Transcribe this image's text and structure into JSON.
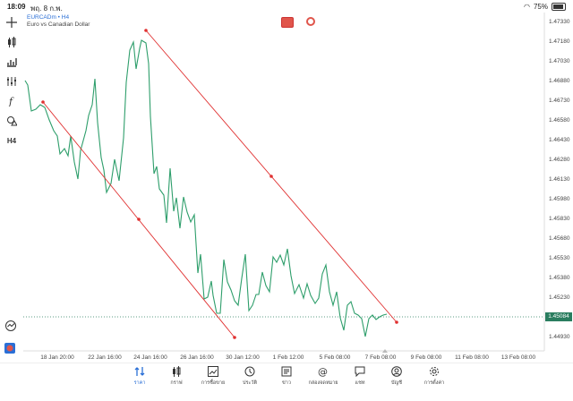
{
  "status": {
    "time": "18:09",
    "date": "พฤ. 8 ก.พ.",
    "battery": "75%"
  },
  "symbol": {
    "code": "EURCADm • H4",
    "description": "Euro vs Canadian Dollar"
  },
  "timeframe": "H4",
  "price_axis": [
    "1.47330",
    "1.47180",
    "1.47030",
    "1.46880",
    "1.46730",
    "1.46580",
    "1.46430",
    "1.46280",
    "1.46130",
    "1.45980",
    "1.45830",
    "1.45680",
    "1.45530",
    "1.45380",
    "1.45230",
    "1.45084",
    "1.44930"
  ],
  "current_price": "1.45084",
  "time_axis": [
    "18 Jan 20:00",
    "22 Jan 16:00",
    "24 Jan 16:00",
    "26 Jan 16:00",
    "30 Jan 12:00",
    "1 Feb 12:00",
    "5 Feb 08:00",
    "7 Feb 08:00",
    "9 Feb 08:00",
    "11 Feb 08:00",
    "13 Feb 08:00"
  ],
  "nav": [
    {
      "label": "ราคา",
      "icon": "quotes-icon",
      "active": true
    },
    {
      "label": "กราฟ",
      "icon": "chart-icon",
      "active": false
    },
    {
      "label": "การซื้อขาย",
      "icon": "trade-icon",
      "active": false
    },
    {
      "label": "ประวัติ",
      "icon": "history-icon",
      "active": false
    },
    {
      "label": "ข่าว",
      "icon": "news-icon",
      "active": false
    },
    {
      "label": "กล่องจดหมาย",
      "icon": "mailbox-icon",
      "active": false
    },
    {
      "label": "แชท",
      "icon": "chat-icon",
      "active": false
    },
    {
      "label": "บัญชี",
      "icon": "account-icon",
      "active": false
    },
    {
      "label": "การตั้งค่า",
      "icon": "settings-icon",
      "active": false
    }
  ],
  "colors": {
    "line": "#2e9e6b",
    "trendline": "#e03030",
    "accent": "#2a6fd6",
    "price_tag": "#2a7d5f"
  }
}
